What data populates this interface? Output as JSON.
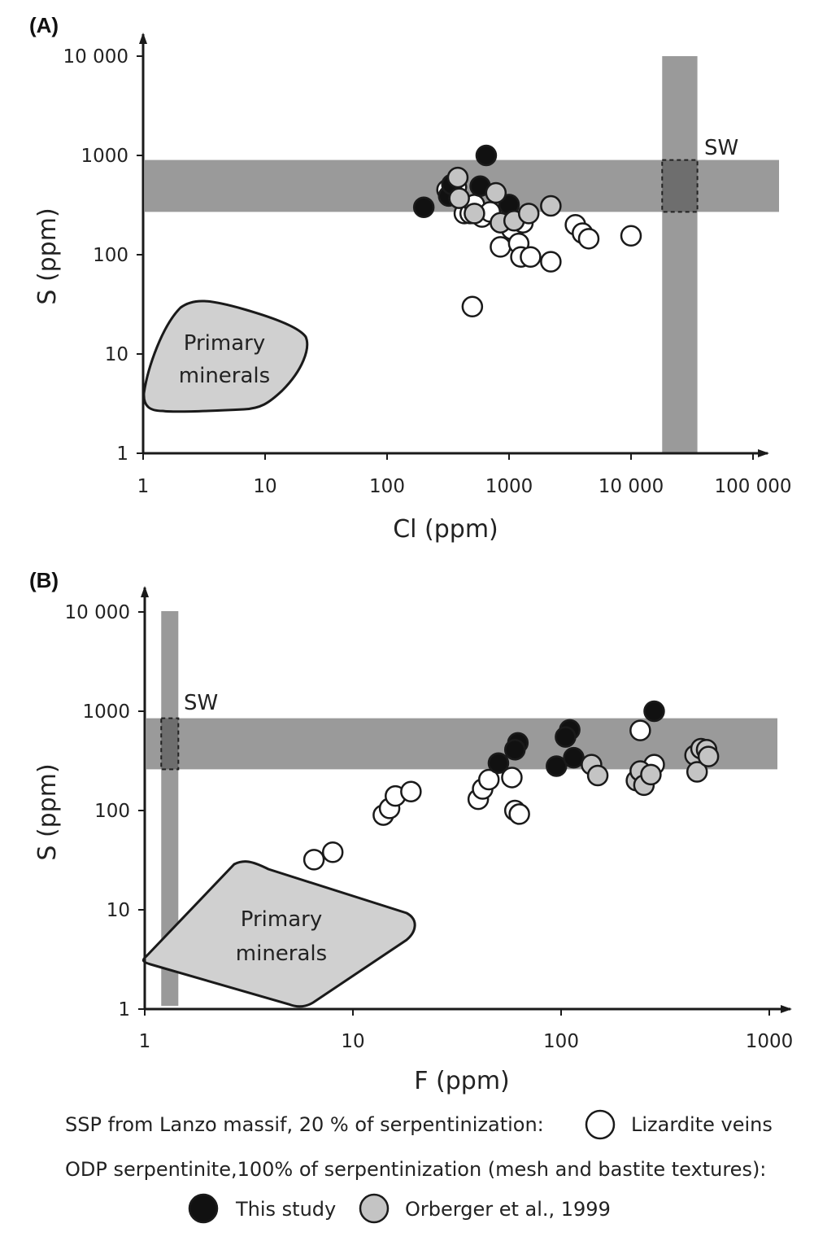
{
  "legend": {
    "line1": "SSP from Lanzo massif, 20 % of serpentinization:",
    "lizardite": "Lizardite veins",
    "line2": "ODP serpentinite,100% of serpentinization (mesh and bastite textures):",
    "this_study": "This study",
    "orberger": "Orberger et al., 1999"
  },
  "colors": {
    "this_study": "#111111",
    "orberger": "#c4c4c4",
    "lizardite": "#ffffff",
    "band": "#9a9a9a",
    "sw_box": "#6e6e6e",
    "primary": "#d0d0d0"
  },
  "chart_data": [
    {
      "type": "scatter",
      "panel": "(A)",
      "xlabel": "Cl (ppm)",
      "ylabel": "S (ppm)",
      "xscale": "log",
      "yscale": "log",
      "xlim": [
        1,
        100000
      ],
      "ylim": [
        1,
        10000
      ],
      "xticks": [
        "1",
        "10",
        "100",
        "1000",
        "10 000",
        "100 000"
      ],
      "yticks": [
        "1",
        "10",
        "100",
        "1000",
        "10 000"
      ],
      "annotations": {
        "sw": "SW",
        "primary_line1": "Primary",
        "primary_line2": "minerals"
      },
      "seawater": {
        "x_range": [
          18000,
          35000
        ],
        "y_range": [
          270,
          900
        ]
      },
      "series": [
        {
          "name": "Lizardite veins",
          "points": [
            [
              310,
              450
            ],
            [
              370,
              480
            ],
            [
              430,
              260
            ],
            [
              480,
              260
            ],
            [
              520,
              320
            ],
            [
              600,
              240
            ],
            [
              700,
              270
            ],
            [
              850,
              120
            ],
            [
              1000,
              200
            ],
            [
              1050,
              180
            ],
            [
              1200,
              130
            ],
            [
              1250,
              95
            ],
            [
              1300,
              210
            ],
            [
              1500,
              95
            ],
            [
              2200,
              85
            ],
            [
              3500,
              200
            ],
            [
              4000,
              165
            ],
            [
              4500,
              145
            ],
            [
              10000,
              155
            ],
            [
              500,
              30
            ]
          ]
        },
        {
          "name": "This study",
          "points": [
            [
              650,
              1000
            ],
            [
              320,
              390
            ],
            [
              340,
              510
            ],
            [
              580,
              490
            ],
            [
              1000,
              320
            ],
            [
              200,
              300
            ]
          ]
        },
        {
          "name": "Orberger et al., 1999",
          "points": [
            [
              380,
              600
            ],
            [
              390,
              370
            ],
            [
              520,
              260
            ],
            [
              780,
              420
            ],
            [
              850,
              210
            ],
            [
              1100,
              220
            ],
            [
              1450,
              260
            ],
            [
              2200,
              310
            ]
          ]
        }
      ]
    },
    {
      "type": "scatter",
      "panel": "(B)",
      "xlabel": "F (ppm)",
      "ylabel": "S (ppm)",
      "xscale": "log",
      "yscale": "log",
      "xlim": [
        1,
        1000
      ],
      "ylim": [
        1,
        10000
      ],
      "xticks": [
        "1",
        "10",
        "100",
        "1000"
      ],
      "yticks": [
        "1",
        "10",
        "100",
        "1000",
        "10 000"
      ],
      "annotations": {
        "sw": "SW",
        "primary_line1": "Primary",
        "primary_line2": "minerals"
      },
      "seawater": {
        "x_range": [
          1.2,
          1.45
        ],
        "y_range": [
          260,
          850
        ]
      },
      "series": [
        {
          "name": "Lizardite veins",
          "points": [
            [
              6.5,
              32
            ],
            [
              8,
              38
            ],
            [
              14,
              90
            ],
            [
              15,
              105
            ],
            [
              16,
              140
            ],
            [
              19,
              155
            ],
            [
              40,
              130
            ],
            [
              42,
              165
            ],
            [
              45,
              205
            ],
            [
              58,
              215
            ],
            [
              60,
              100
            ],
            [
              63,
              92
            ],
            [
              240,
              640
            ],
            [
              280,
              290
            ]
          ]
        },
        {
          "name": "This study",
          "points": [
            [
              280,
              1000
            ],
            [
              110,
              650
            ],
            [
              105,
              550
            ],
            [
              62,
              480
            ],
            [
              60,
              410
            ],
            [
              50,
              300
            ],
            [
              95,
              280
            ],
            [
              115,
              340
            ]
          ]
        },
        {
          "name": "Orberger et al., 1999",
          "points": [
            [
              140,
              290
            ],
            [
              150,
              225
            ],
            [
              230,
              200
            ],
            [
              240,
              250
            ],
            [
              250,
              180
            ],
            [
              270,
              230
            ],
            [
              440,
              360
            ],
            [
              450,
              245
            ],
            [
              470,
              420
            ],
            [
              500,
              410
            ],
            [
              510,
              350
            ]
          ]
        }
      ]
    }
  ]
}
